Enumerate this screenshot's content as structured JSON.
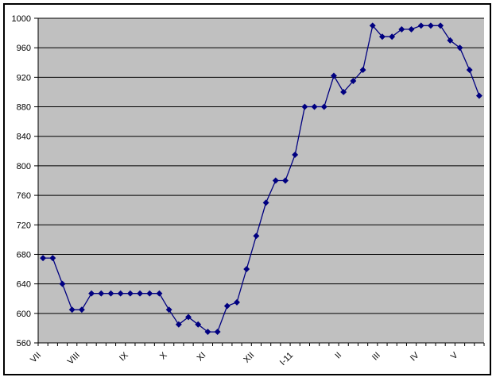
{
  "chart_data": {
    "type": "line",
    "title": "",
    "xlabel": "",
    "ylabel": "",
    "legend": "none",
    "grid": true,
    "marker": "diamond",
    "colors": {
      "series": "#000080",
      "plot_background": "#c0c0c0",
      "gridline": "#000000",
      "axis": "#000000",
      "frame_border": "#000000",
      "page_background": "#ffffff",
      "text": "#000000"
    },
    "ylim": [
      560,
      1000
    ],
    "y_ticks": [
      560,
      600,
      640,
      680,
      720,
      760,
      800,
      840,
      880,
      920,
      960,
      1000
    ],
    "x_tick_labels": [
      {
        "text": "VII",
        "index": 0
      },
      {
        "text": "VIII",
        "index": 4
      },
      {
        "text": "IX",
        "index": 9
      },
      {
        "text": "X",
        "index": 13
      },
      {
        "text": "XI",
        "index": 17
      },
      {
        "text": "XII",
        "index": 22
      },
      {
        "text": "I-11",
        "index": 26
      },
      {
        "text": "II",
        "index": 31
      },
      {
        "text": "III",
        "index": 35
      },
      {
        "text": "IV",
        "index": 39
      },
      {
        "text": "V",
        "index": 43
      }
    ],
    "values": [
      675,
      675,
      640,
      605,
      605,
      627,
      627,
      627,
      627,
      627,
      627,
      627,
      627,
      605,
      585,
      595,
      585,
      575,
      575,
      610,
      615,
      660,
      705,
      750,
      780,
      780,
      815,
      880,
      880,
      880,
      922,
      900,
      915,
      930,
      990,
      975,
      975,
      985,
      985,
      990,
      990,
      990,
      970,
      960,
      930,
      895
    ]
  }
}
